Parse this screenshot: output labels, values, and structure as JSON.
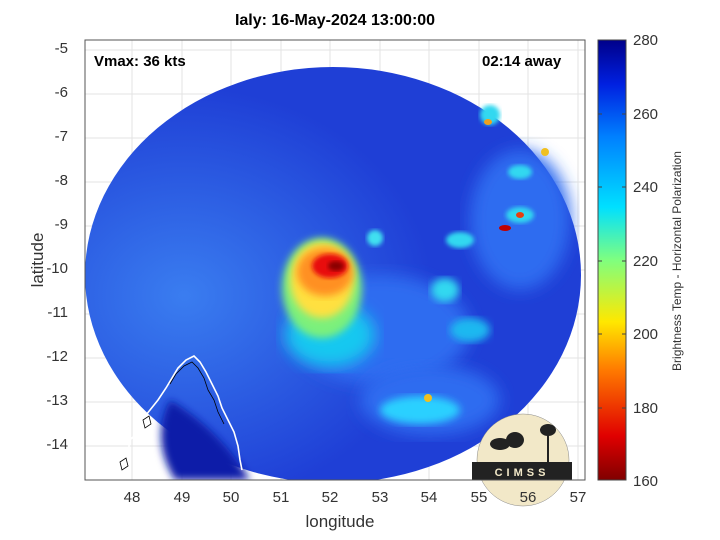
{
  "title": "Ialy: 16-May-2024 13:00:00",
  "annotations": {
    "vmax": "Vmax: 36 kts",
    "away": "02:14 away"
  },
  "axes": {
    "xlabel": "longitude",
    "ylabel": "latitude",
    "xticks": [
      "48",
      "49",
      "50",
      "51",
      "52",
      "53",
      "54",
      "55",
      "56",
      "57"
    ],
    "yticks": [
      "-5",
      "-6",
      "-7",
      "-8",
      "-9",
      "-10",
      "-11",
      "-12",
      "-13",
      "-14"
    ]
  },
  "colorbar": {
    "label": "Brightness Temp - Horizontal Polarization",
    "ticks": [
      "280",
      "260",
      "240",
      "220",
      "200",
      "180",
      "160"
    ],
    "range": [
      160,
      280
    ]
  },
  "logo": {
    "text": "CIMSS"
  },
  "colors": {
    "background_swath": "#1f3fd6",
    "core_cold": "#b00000",
    "outside_swath": "#ffffff"
  }
}
